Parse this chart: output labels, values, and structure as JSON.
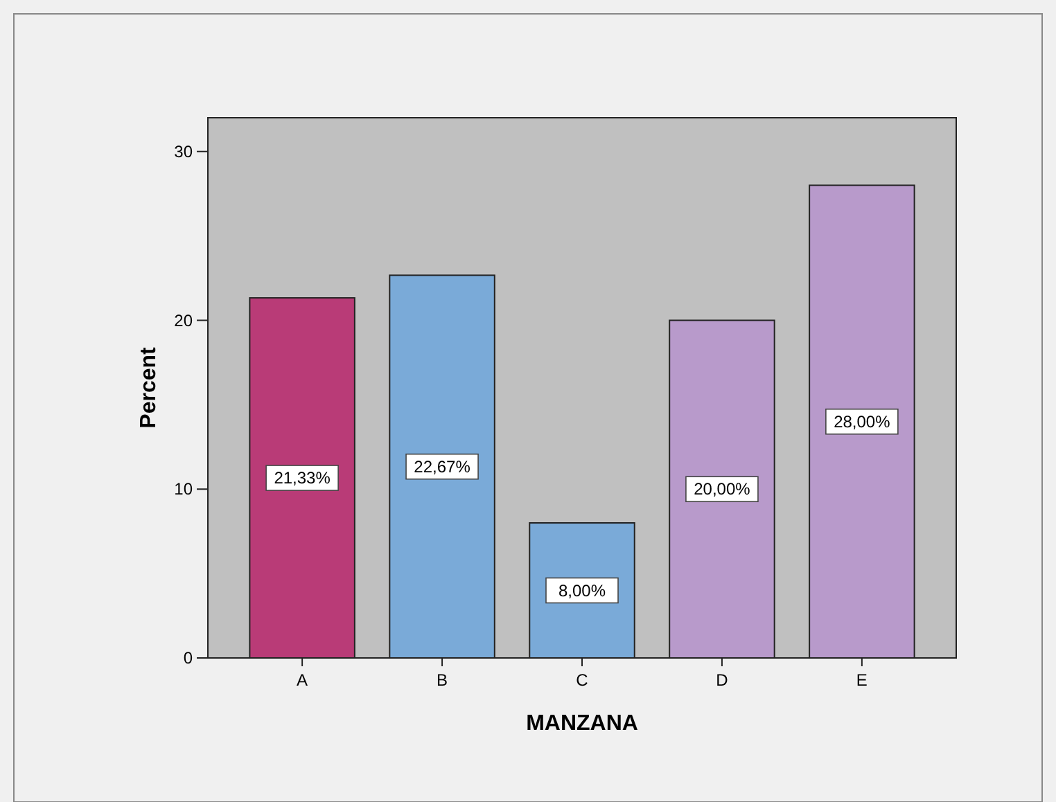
{
  "chart_data": {
    "type": "bar",
    "xlabel": "MANZANA",
    "ylabel": "Percent",
    "categories": [
      "A",
      "B",
      "C",
      "D",
      "E"
    ],
    "values": [
      21.33,
      22.67,
      8,
      20,
      28
    ],
    "colors": [
      "#b93b77",
      "#7aaad8",
      "#7aaad8",
      "#b89acb",
      "#b89acb"
    ],
    "value_labels": [
      "21,33%",
      "22,67%",
      "8,00%",
      "20,00%",
      "28,00%"
    ],
    "ylim": [
      0,
      32
    ],
    "yticks": [
      0,
      10,
      20,
      30
    ],
    "grid": false
  }
}
